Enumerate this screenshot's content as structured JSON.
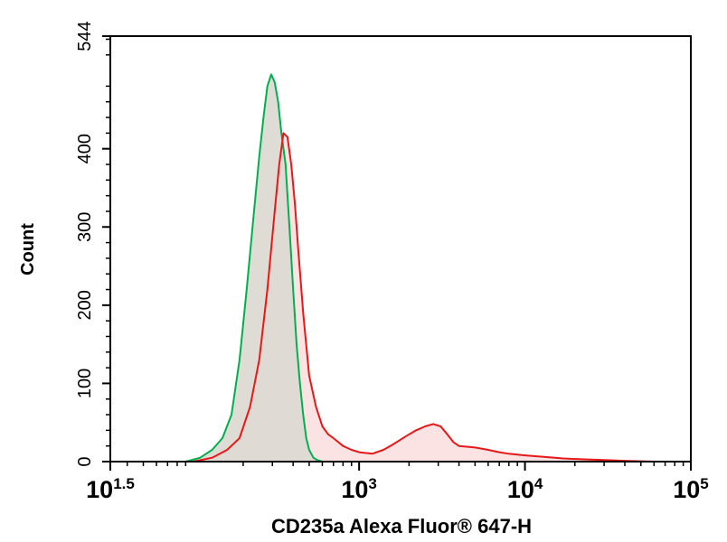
{
  "chart_data": {
    "type": "area",
    "title": "",
    "xlabel": "CD235a Alexa Fluor® 647-H",
    "ylabel": "Count",
    "x_scale": "log",
    "xlim": [
      31.62,
      100000
    ],
    "ylim": [
      0,
      544
    ],
    "grid": false,
    "x_ticks": [
      {
        "value": 31.62,
        "base": "10",
        "exp": "1.5"
      },
      {
        "value": 1000,
        "base": "10",
        "exp": "3"
      },
      {
        "value": 10000,
        "base": "10",
        "exp": "4"
      },
      {
        "value": 100000,
        "base": "10",
        "exp": "5"
      }
    ],
    "y_ticks": [
      {
        "value": 0,
        "label": "0"
      },
      {
        "value": 100,
        "label": "100"
      },
      {
        "value": 200,
        "label": "200"
      },
      {
        "value": 300,
        "label": "300"
      },
      {
        "value": 400,
        "label": "400"
      },
      {
        "value": 544,
        "label": "544"
      }
    ],
    "series": [
      {
        "color": "#00b050",
        "fill": "#dcd8d0",
        "x": [
          90,
          110,
          130,
          150,
          170,
          190,
          210,
          230,
          250,
          265,
          280,
          295,
          310,
          325,
          340,
          360,
          380,
          400,
          420,
          440,
          460,
          480,
          500,
          530,
          560,
          600,
          650
        ],
        "y": [
          0,
          5,
          15,
          30,
          60,
          130,
          220,
          310,
          390,
          440,
          480,
          495,
          485,
          460,
          420,
          380,
          300,
          220,
          150,
          100,
          60,
          30,
          15,
          5,
          2,
          0,
          0
        ]
      },
      {
        "color": "#e81818",
        "fill": "#fbdcdc",
        "x": [
          100,
          130,
          160,
          190,
          220,
          250,
          280,
          310,
          330,
          350,
          370,
          390,
          410,
          430,
          460,
          500,
          550,
          600,
          650,
          700,
          800,
          900,
          1000,
          1200,
          1400,
          1600,
          1900,
          2200,
          2500,
          2800,
          3100,
          3400,
          3700,
          4000,
          5000,
          6000,
          7000,
          8000,
          10000,
          13000,
          17000,
          22000,
          30000,
          40000,
          60000,
          100000
        ],
        "y": [
          0,
          5,
          15,
          30,
          70,
          130,
          220,
          320,
          380,
          420,
          415,
          380,
          330,
          270,
          190,
          110,
          70,
          45,
          35,
          30,
          20,
          15,
          12,
          10,
          15,
          22,
          32,
          40,
          45,
          48,
          45,
          35,
          25,
          20,
          18,
          15,
          12,
          10,
          8,
          6,
          4,
          3,
          2,
          1,
          0,
          0
        ]
      }
    ]
  }
}
